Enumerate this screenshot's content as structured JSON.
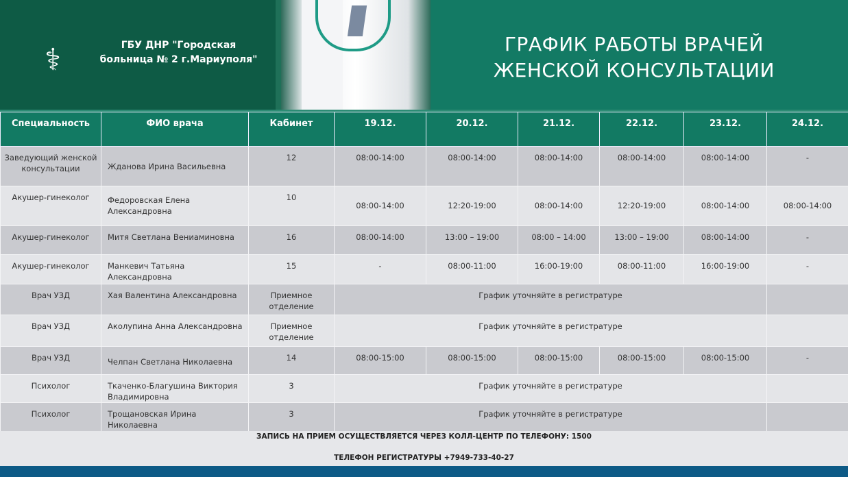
{
  "header": {
    "org_name_line1": "ГБУ ДНР \"Городская",
    "org_name_line2": "больница № 2 г.Мариуполя\"",
    "title_line1": "ГРАФИК РАБОТЫ ВРАЧЕЙ",
    "title_line2": "ЖЕНСКОЙ КОНСУЛЬТАЦИИ",
    "logo_icon": "bowl-of-hygieia-icon"
  },
  "colors": {
    "header_green": "#127a63",
    "banner_dark": "#0e5b45",
    "row_dark": "#c9cacf",
    "row_light": "#e4e5e8",
    "bottom_bar": "#0d5a86"
  },
  "table": {
    "columns": [
      "Специальность",
      "ФИО врача",
      "Кабинет",
      "19.12.",
      "20.12.",
      "21.12.",
      "22.12.",
      "23.12.",
      "24.12."
    ],
    "rows": [
      {
        "specialty": "Заведующий женской консультации",
        "name": "Жданова Ирина Васильевна",
        "room": "12",
        "days": [
          "08:00-14:00",
          "08:00-14:00",
          "08:00-14:00",
          "08:00-14:00",
          "08:00-14:00",
          "-"
        ]
      },
      {
        "specialty": "Акушер-гинеколог",
        "name": "Федоровская Елена Александровна",
        "room": "10",
        "days": [
          "08:00-14:00",
          "12:20-19:00",
          "08:00-14:00",
          "12:20-19:00",
          "08:00-14:00",
          "08:00-14:00"
        ]
      },
      {
        "specialty": "Акушер-гинеколог",
        "name": "Митя Светлана Вениаминовна",
        "room": "16",
        "days": [
          "08:00-14:00",
          "13:00 – 19:00",
          "08:00 – 14:00",
          "13:00 – 19:00",
          "08:00-14:00",
          "-"
        ]
      },
      {
        "specialty": "Акушер-гинеколог",
        "name": "Манкевич Татьяна Александровна",
        "room": "15",
        "days": [
          "-",
          "08:00-11:00",
          "16:00-19:00",
          "08:00-11:00",
          "16:00-19:00",
          "-"
        ]
      },
      {
        "specialty": "Врач УЗД",
        "name": "Хая Валентина Александровна",
        "room": "Приемное отделение",
        "note": "График уточняйте в регистратуре"
      },
      {
        "specialty": "Врач УЗД",
        "name": "Аколупина Анна Александровна",
        "room": "Приемное отделение",
        "note": "График уточняйте в регистратуре"
      },
      {
        "specialty": "Врач УЗД",
        "name": "Челпан Светлана Николаевна",
        "room": "14",
        "days": [
          "08:00-15:00",
          "08:00-15:00",
          "08:00-15:00",
          "08:00-15:00",
          "08:00-15:00",
          "-"
        ]
      },
      {
        "specialty": "Психолог",
        "name": "Ткаченко-Благушина Виктория Владимировна",
        "room": "3",
        "note": "График уточняйте в регистратуре"
      },
      {
        "specialty": "Психолог",
        "name": "Трощановская Ирина Николаевна",
        "room": "3",
        "note": "График уточняйте в регистратуре"
      }
    ]
  },
  "footer": {
    "line1": "ЗАПИСЬ НА ПРИЕМ ОСУЩЕСТВЛЯЕТСЯ ЧЕРЕЗ КОЛЛ-ЦЕНТР ПО ТЕЛЕФОНУ: 1500",
    "line2": "ТЕЛЕФОН РЕГИСТРАТУРЫ +7949-733-40-27"
  }
}
